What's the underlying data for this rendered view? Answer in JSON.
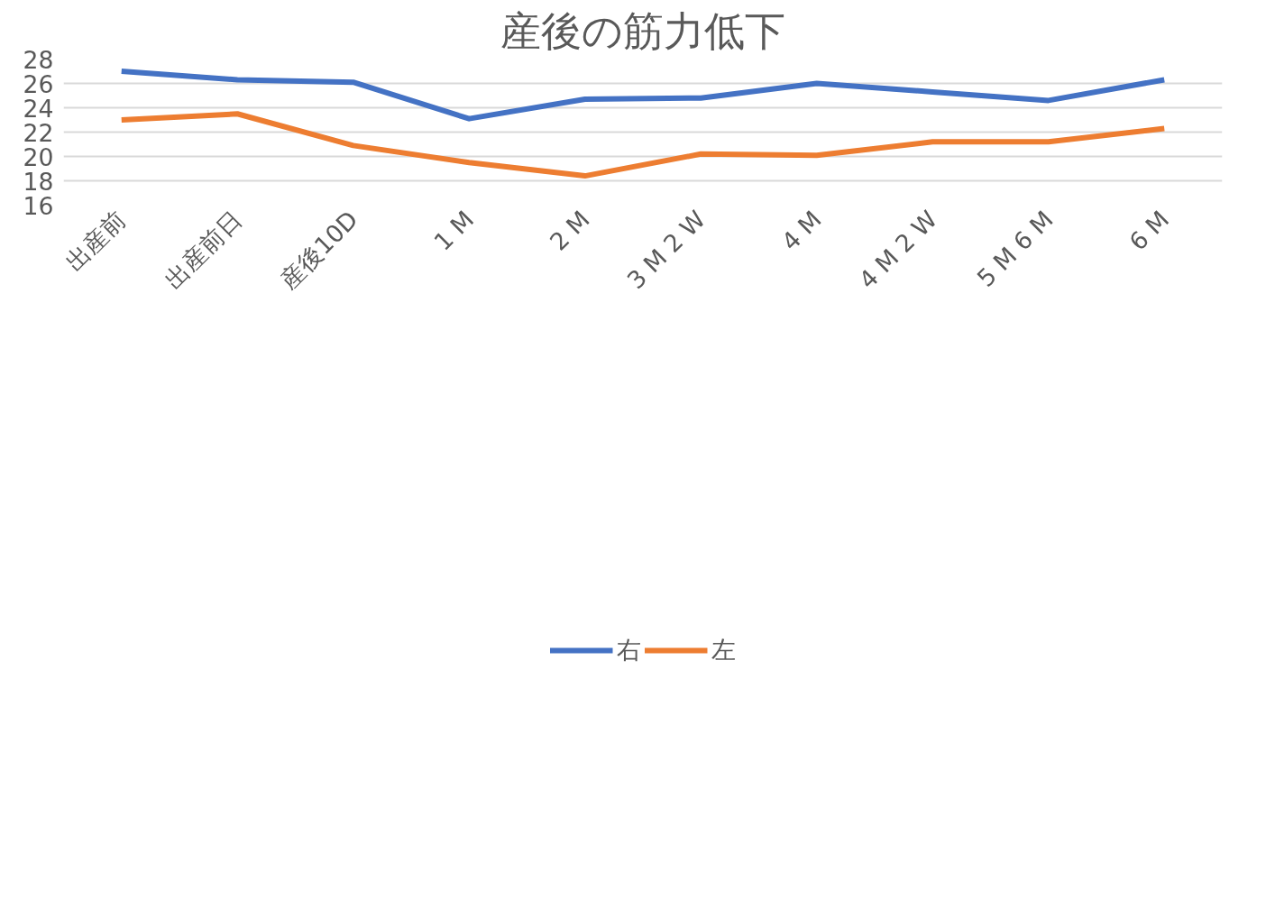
{
  "chart_data": {
    "type": "line",
    "title": "産後の筋力低下",
    "categories": [
      "出産前",
      "出産前日",
      "産後10D",
      "1 M",
      "2 M",
      "3 M 2 W",
      "4 M",
      "4 M 2 W",
      "5 M 6 M",
      "6 M"
    ],
    "series": [
      {
        "name": "右",
        "color": "#4472c4",
        "values": [
          27.0,
          26.3,
          26.1,
          23.1,
          24.7,
          24.8,
          26.0,
          25.3,
          24.6,
          26.3
        ]
      },
      {
        "name": "左",
        "color": "#ed7d31",
        "values": [
          23.0,
          23.5,
          20.9,
          19.5,
          18.4,
          20.2,
          20.1,
          21.2,
          21.2,
          22.3
        ]
      }
    ],
    "ylim": [
      16,
      28
    ],
    "yticks": [
      16,
      18,
      20,
      22,
      24,
      26,
      28
    ],
    "grid": "y",
    "legend": "bottom",
    "marker": "none",
    "line_style": "solid"
  }
}
